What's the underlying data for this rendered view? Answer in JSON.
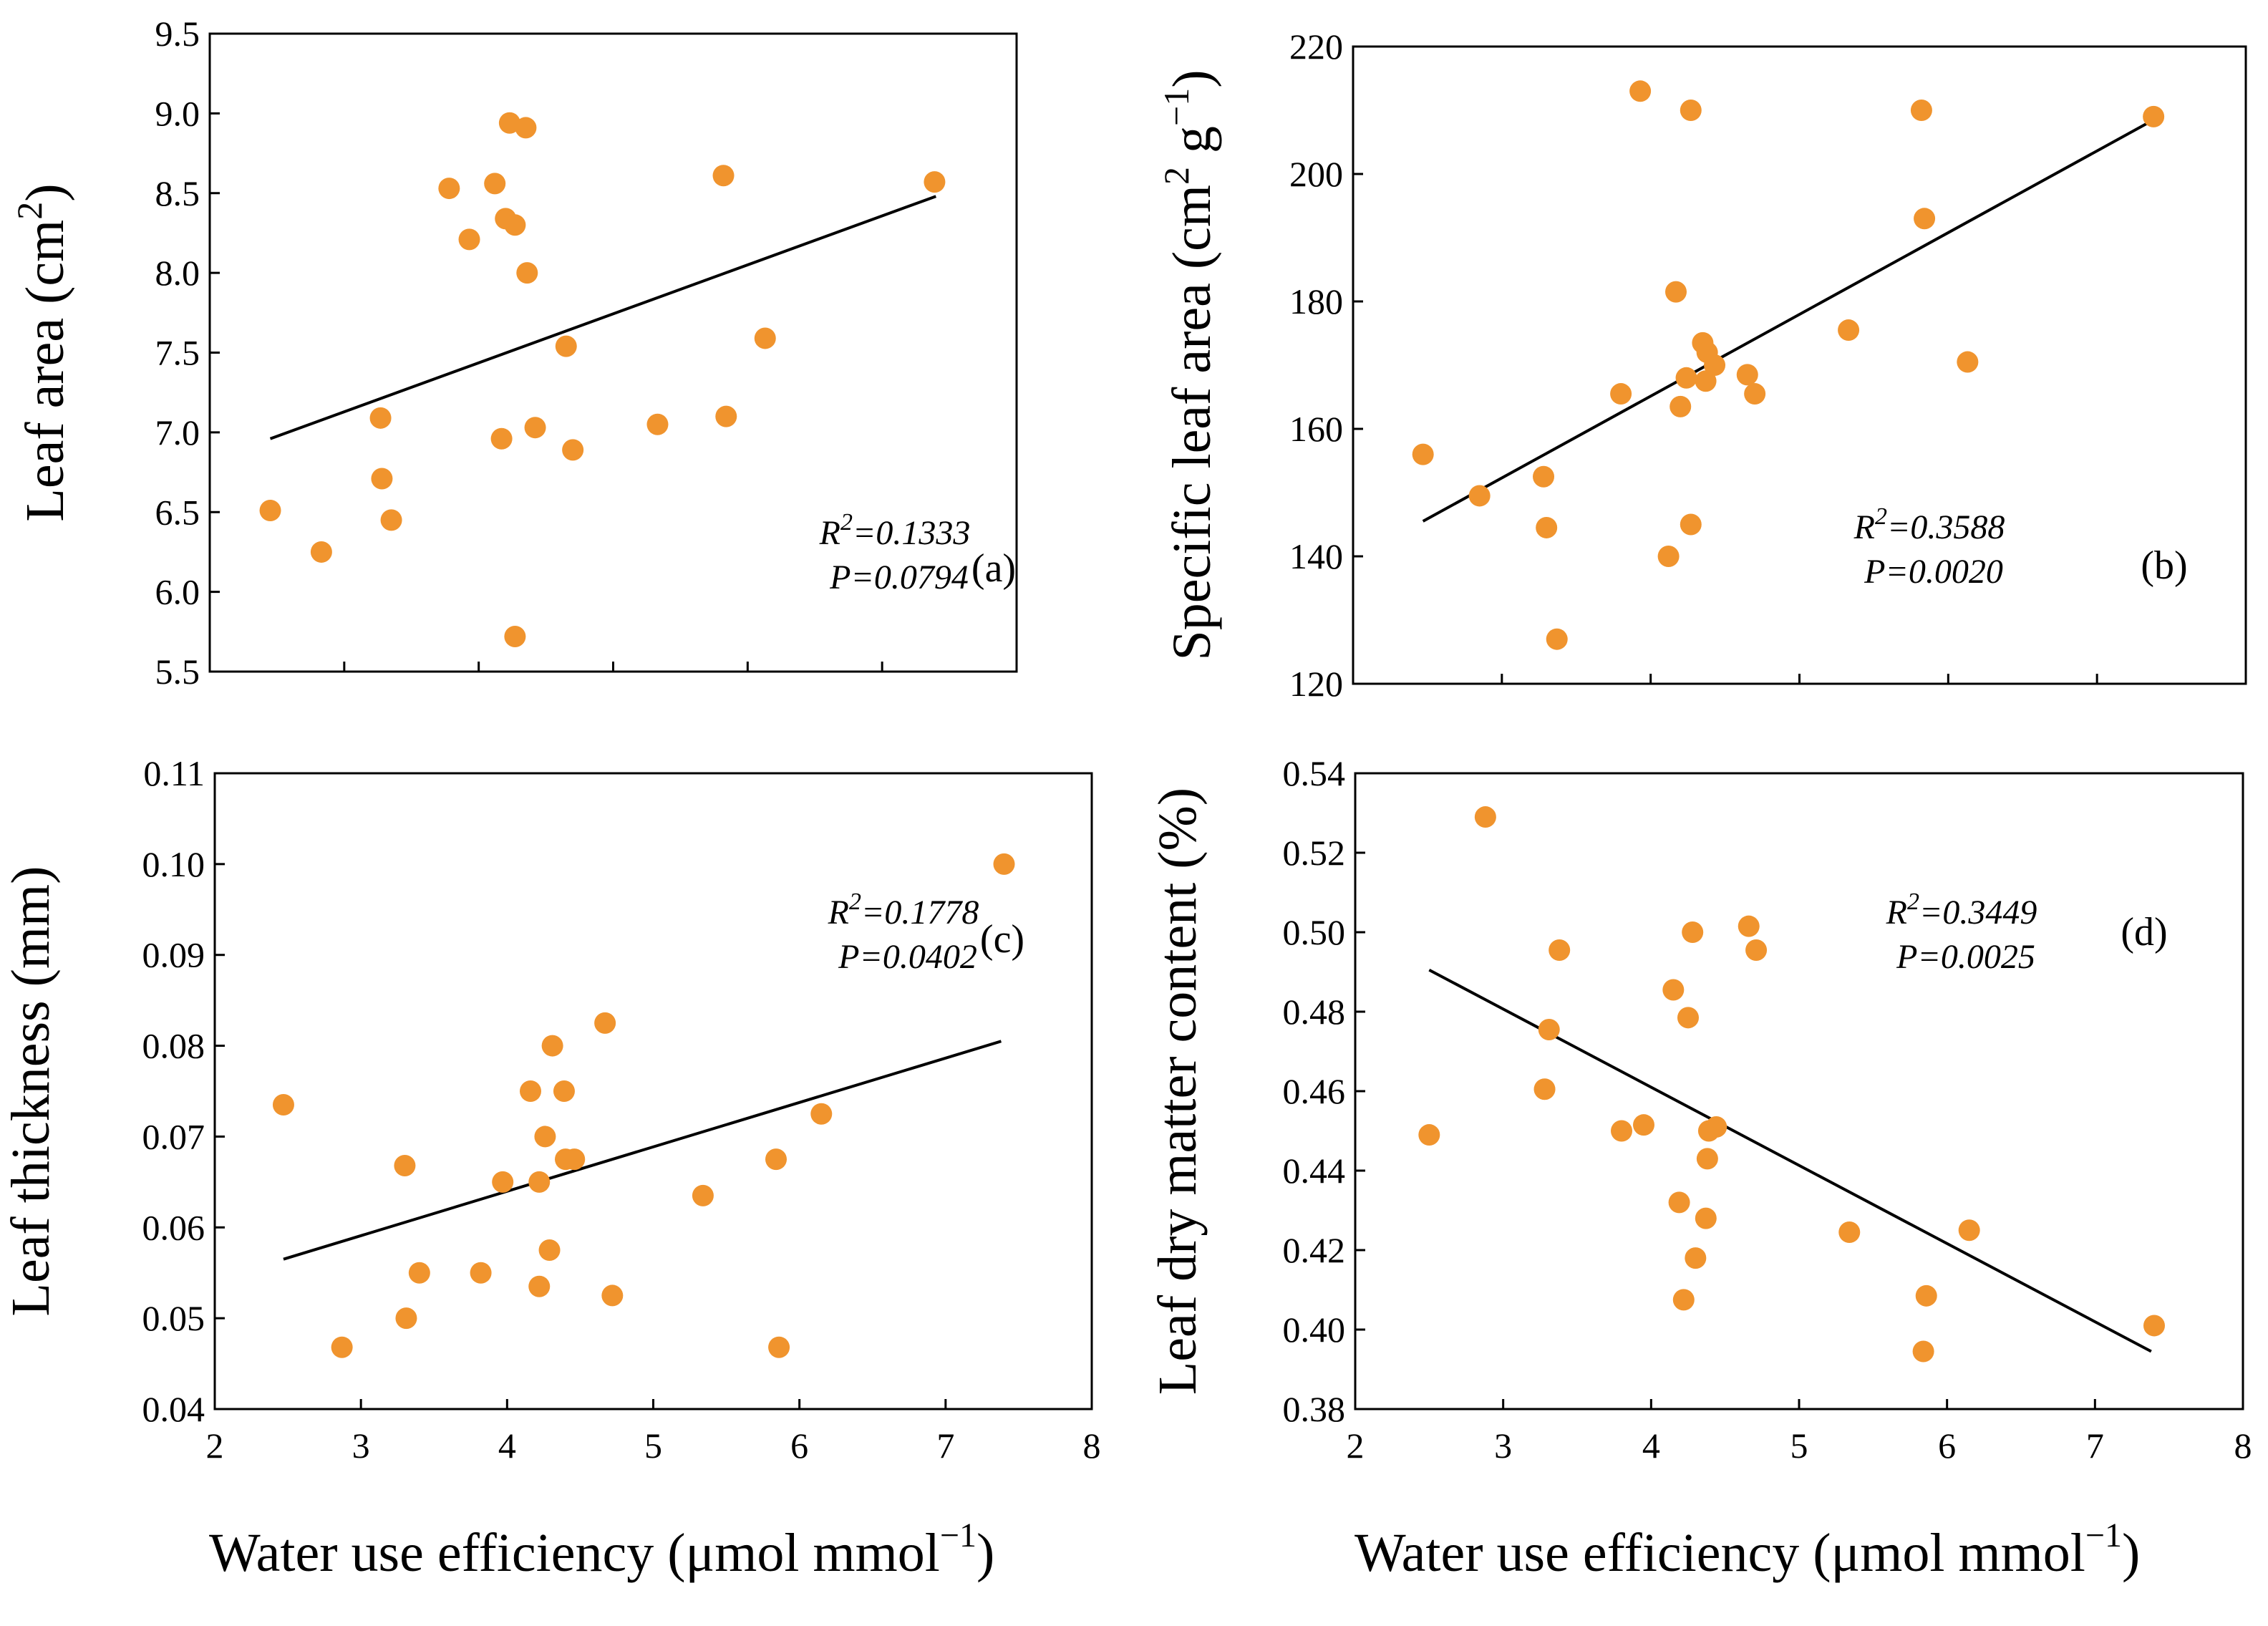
{
  "colors": {
    "marker": "#F0942E",
    "line": "#000000",
    "axis": "#000000"
  },
  "figure": {
    "xlabel_text": "Water use efficiency (μmol mmol",
    "xlabel_sup": "−1",
    "xlabel_close": ")"
  },
  "chart_data": [
    {
      "id": "a",
      "type": "scatter",
      "panel_label": "(a)",
      "ylabel_text": "Leaf area (cm",
      "ylabel_sup": "2",
      "ylabel_close": ")",
      "xlim": [
        2,
        8
      ],
      "ylim": [
        5.5,
        9.5
      ],
      "xticks": [
        "2",
        "3",
        "4",
        "5",
        "6",
        "7",
        "8"
      ],
      "yticks": [
        "5.5",
        "6.0",
        "6.5",
        "7.0",
        "7.5",
        "8.0",
        "8.5",
        "9.0",
        "9.5"
      ],
      "x_tick_labels_visible": false,
      "r2_prefix": "R",
      "r2_sup": "2",
      "r2_value": "=0.1333",
      "p_text": "P=0.0794",
      "trend_line": {
        "x": [
          2.45,
          7.4
        ],
        "y": [
          6.96,
          8.48
        ]
      },
      "points": [
        {
          "x": 2.45,
          "y": 6.51
        },
        {
          "x": 2.83,
          "y": 6.25
        },
        {
          "x": 3.27,
          "y": 7.09
        },
        {
          "x": 3.28,
          "y": 6.71
        },
        {
          "x": 3.35,
          "y": 6.45
        },
        {
          "x": 3.78,
          "y": 8.53
        },
        {
          "x": 3.93,
          "y": 8.21
        },
        {
          "x": 4.12,
          "y": 8.56
        },
        {
          "x": 4.17,
          "y": 6.96
        },
        {
          "x": 4.2,
          "y": 8.34
        },
        {
          "x": 4.23,
          "y": 8.94
        },
        {
          "x": 4.27,
          "y": 8.3
        },
        {
          "x": 4.27,
          "y": 5.72
        },
        {
          "x": 4.35,
          "y": 8.91
        },
        {
          "x": 4.36,
          "y": 8.0
        },
        {
          "x": 4.42,
          "y": 7.03
        },
        {
          "x": 4.65,
          "y": 7.54
        },
        {
          "x": 4.7,
          "y": 6.89
        },
        {
          "x": 5.33,
          "y": 7.05
        },
        {
          "x": 5.82,
          "y": 8.61
        },
        {
          "x": 5.84,
          "y": 7.1
        },
        {
          "x": 6.13,
          "y": 7.59
        },
        {
          "x": 7.39,
          "y": 8.57
        }
      ]
    },
    {
      "id": "b",
      "type": "scatter",
      "panel_label": "(b)",
      "ylabel_text": "Specific leaf area (cm",
      "ylabel_sup": "2",
      "ylabel_mid": " g",
      "ylabel_sup2": "−1",
      "ylabel_close": ")",
      "xlim": [
        2,
        8
      ],
      "ylim": [
        120,
        220
      ],
      "xticks": [
        "2",
        "3",
        "4",
        "5",
        "6",
        "7",
        "8"
      ],
      "yticks": [
        "120",
        "140",
        "160",
        "180",
        "200",
        "220"
      ],
      "x_tick_labels_visible": false,
      "r2_prefix": "R",
      "r2_sup": "2",
      "r2_value": "=0.3588",
      "p_text": "P=0.0020",
      "trend_line": {
        "x": [
          2.47,
          7.38
        ],
        "y": [
          145.5,
          208.5
        ]
      },
      "points": [
        {
          "x": 2.47,
          "y": 156.0
        },
        {
          "x": 2.85,
          "y": 149.5
        },
        {
          "x": 3.28,
          "y": 152.5
        },
        {
          "x": 3.3,
          "y": 144.5
        },
        {
          "x": 3.37,
          "y": 127.0
        },
        {
          "x": 3.8,
          "y": 165.5
        },
        {
          "x": 3.93,
          "y": 213.0
        },
        {
          "x": 4.12,
          "y": 140.0
        },
        {
          "x": 4.17,
          "y": 181.5
        },
        {
          "x": 4.2,
          "y": 163.5
        },
        {
          "x": 4.24,
          "y": 168.0
        },
        {
          "x": 4.27,
          "y": 145.0
        },
        {
          "x": 4.27,
          "y": 210.0
        },
        {
          "x": 4.35,
          "y": 173.5
        },
        {
          "x": 4.37,
          "y": 167.5
        },
        {
          "x": 4.38,
          "y": 172.0
        },
        {
          "x": 4.43,
          "y": 170.0
        },
        {
          "x": 4.65,
          "y": 168.5
        },
        {
          "x": 4.7,
          "y": 165.5
        },
        {
          "x": 5.33,
          "y": 175.5
        },
        {
          "x": 5.82,
          "y": 210.0
        },
        {
          "x": 5.84,
          "y": 193.0
        },
        {
          "x": 6.13,
          "y": 170.5
        },
        {
          "x": 7.38,
          "y": 209.0
        }
      ]
    },
    {
      "id": "c",
      "type": "scatter",
      "panel_label": "(c)",
      "ylabel_text": "Leaf thickness (mm)",
      "xlim": [
        2,
        8
      ],
      "ylim": [
        0.04,
        0.11
      ],
      "xticks": [
        "2",
        "3",
        "4",
        "5",
        "6",
        "7",
        "8"
      ],
      "yticks": [
        "0.04",
        "0.05",
        "0.06",
        "0.07",
        "0.08",
        "0.09",
        "0.10",
        "0.11"
      ],
      "x_tick_labels_visible": true,
      "r2_prefix": "R",
      "r2_sup": "2",
      "r2_value": "=0.1778",
      "p_text": "P=0.0402",
      "trend_line": {
        "x": [
          2.47,
          7.38
        ],
        "y": [
          0.0565,
          0.0805
        ]
      },
      "points": [
        {
          "x": 2.47,
          "y": 0.0735
        },
        {
          "x": 2.87,
          "y": 0.0468
        },
        {
          "x": 3.3,
          "y": 0.0668
        },
        {
          "x": 3.31,
          "y": 0.05
        },
        {
          "x": 3.4,
          "y": 0.055
        },
        {
          "x": 3.82,
          "y": 0.055
        },
        {
          "x": 3.97,
          "y": 0.065
        },
        {
          "x": 4.16,
          "y": 0.075
        },
        {
          "x": 4.22,
          "y": 0.0535
        },
        {
          "x": 4.22,
          "y": 0.065
        },
        {
          "x": 4.26,
          "y": 0.07
        },
        {
          "x": 4.29,
          "y": 0.0575
        },
        {
          "x": 4.31,
          "y": 0.08
        },
        {
          "x": 4.39,
          "y": 0.075
        },
        {
          "x": 4.4,
          "y": 0.0675
        },
        {
          "x": 4.46,
          "y": 0.0675
        },
        {
          "x": 4.67,
          "y": 0.0825
        },
        {
          "x": 4.72,
          "y": 0.0525
        },
        {
          "x": 5.34,
          "y": 0.0635
        },
        {
          "x": 5.84,
          "y": 0.0675
        },
        {
          "x": 5.86,
          "y": 0.0468
        },
        {
          "x": 6.15,
          "y": 0.0725
        },
        {
          "x": 7.4,
          "y": 0.1
        }
      ]
    },
    {
      "id": "d",
      "type": "scatter",
      "panel_label": "(d)",
      "ylabel_text": "Leaf dry matter content (%)",
      "xlim": [
        2,
        8
      ],
      "ylim": [
        0.38,
        0.54
      ],
      "xticks": [
        "2",
        "3",
        "4",
        "5",
        "6",
        "7",
        "8"
      ],
      "yticks": [
        "0.38",
        "0.40",
        "0.42",
        "0.44",
        "0.46",
        "0.48",
        "0.50",
        "0.52",
        "0.54"
      ],
      "x_tick_labels_visible": true,
      "r2_prefix": "R",
      "r2_sup": "2",
      "r2_value": "=0.3449",
      "p_text": "P=0.0025",
      "trend_line": {
        "x": [
          2.5,
          7.38
        ],
        "y": [
          0.4905,
          0.3945
        ]
      },
      "points": [
        {
          "x": 2.5,
          "y": 0.449
        },
        {
          "x": 2.88,
          "y": 0.529
        },
        {
          "x": 3.28,
          "y": 0.4605
        },
        {
          "x": 3.31,
          "y": 0.4755
        },
        {
          "x": 3.38,
          "y": 0.4955
        },
        {
          "x": 3.8,
          "y": 0.45
        },
        {
          "x": 3.95,
          "y": 0.4515
        },
        {
          "x": 4.15,
          "y": 0.4855
        },
        {
          "x": 4.19,
          "y": 0.432
        },
        {
          "x": 4.22,
          "y": 0.4075
        },
        {
          "x": 4.25,
          "y": 0.4785
        },
        {
          "x": 4.28,
          "y": 0.5
        },
        {
          "x": 4.3,
          "y": 0.418
        },
        {
          "x": 4.37,
          "y": 0.428
        },
        {
          "x": 4.38,
          "y": 0.443
        },
        {
          "x": 4.39,
          "y": 0.45
        },
        {
          "x": 4.44,
          "y": 0.451
        },
        {
          "x": 4.66,
          "y": 0.5015
        },
        {
          "x": 4.71,
          "y": 0.4955
        },
        {
          "x": 5.34,
          "y": 0.4245
        },
        {
          "x": 5.84,
          "y": 0.3945
        },
        {
          "x": 5.86,
          "y": 0.4085
        },
        {
          "x": 6.15,
          "y": 0.425
        },
        {
          "x": 7.4,
          "y": 0.401
        }
      ]
    }
  ]
}
